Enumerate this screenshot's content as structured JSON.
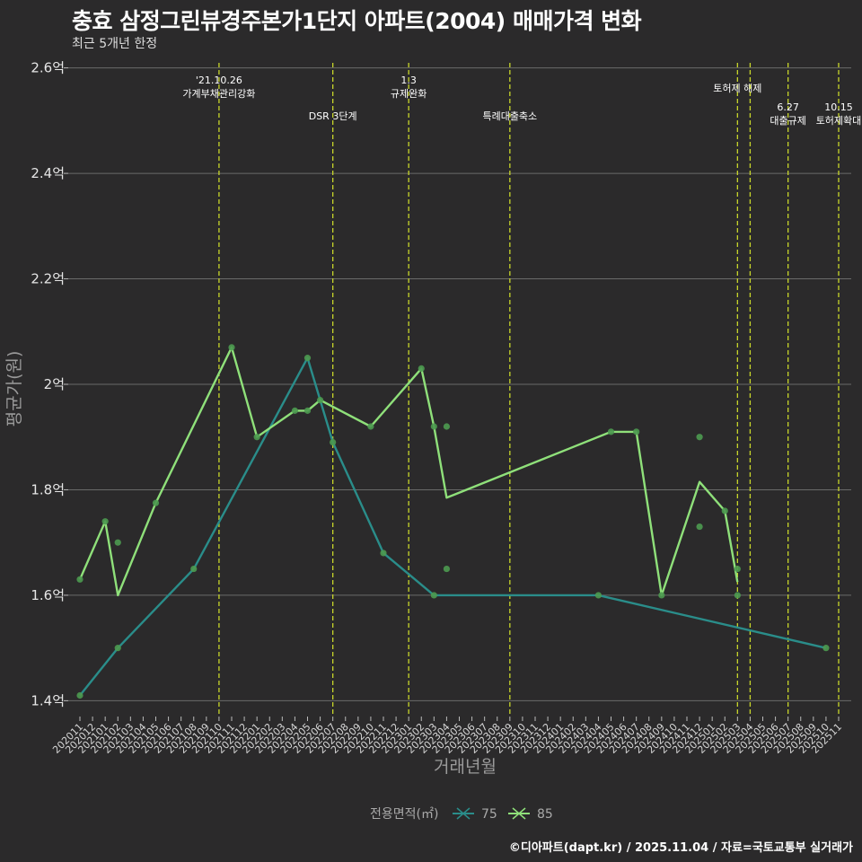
{
  "header": {
    "title": "충효 삼정그린뷰경주본가1단지 아파트(2004) 매매가격 변화",
    "subtitle": "최근 5개년 한정"
  },
  "footer": {
    "caption": "©디아파트(dapt.kr) / 2025.11.04 / 자료=국토교통부 실거래가"
  },
  "colors": {
    "background": "#2b2a2b",
    "grid": "#6a6a6a",
    "event_line": "#c8d62a",
    "series_75": "#2a8d8a",
    "series_85": "#8fe07a",
    "point": "#4c9a50"
  },
  "chart_data": {
    "type": "line",
    "title": "충효 삼정그린뷰경주본가1단지 아파트(2004) 매매가격 변화",
    "subtitle": "최근 5개년 한정",
    "xlabel": "거래년월",
    "ylabel": "평균가(원)",
    "ylim": [
      1.37,
      2.63
    ],
    "y_ticks": [
      {
        "value": 1.4,
        "label": "1.4억"
      },
      {
        "value": 1.6,
        "label": "1.6억"
      },
      {
        "value": 1.8,
        "label": "1.8억"
      },
      {
        "value": 2.0,
        "label": "2억"
      },
      {
        "value": 2.2,
        "label": "2.2억"
      },
      {
        "value": 2.4,
        "label": "2.4억"
      },
      {
        "value": 2.6,
        "label": "2.6억"
      }
    ],
    "x_categories": [
      "202011",
      "202012",
      "202101",
      "202102",
      "202103",
      "202104",
      "202105",
      "202106",
      "202107",
      "202108",
      "202109",
      "202110",
      "202111",
      "202112",
      "202201",
      "202202",
      "202203",
      "202204",
      "202205",
      "202206",
      "202207",
      "202208",
      "202209",
      "202210",
      "202211",
      "202212",
      "202301",
      "202302",
      "202303",
      "202304",
      "202305",
      "202306",
      "202307",
      "202308",
      "202309",
      "202310",
      "202311",
      "202312",
      "202401",
      "202402",
      "202403",
      "202404",
      "202405",
      "202406",
      "202407",
      "202408",
      "202409",
      "202410",
      "202411",
      "202412",
      "202501",
      "202502",
      "202503",
      "202504",
      "202505",
      "202506",
      "202507",
      "202508",
      "202509",
      "202510",
      "202511"
    ],
    "legend": {
      "title": "전용면적(㎡)",
      "entries": [
        "75",
        "85"
      ]
    },
    "series": [
      {
        "name": "75",
        "points": [
          {
            "x": 0,
            "y": 1.41
          },
          {
            "x": 3,
            "y": 1.5
          },
          {
            "x": 9,
            "y": 1.65
          },
          {
            "x": 18,
            "y": 2.05
          },
          {
            "x": 20,
            "y": 1.89
          },
          {
            "x": 24,
            "y": 1.68
          },
          {
            "x": 28,
            "y": 1.6
          },
          {
            "x": 41,
            "y": 1.6
          },
          {
            "x": 59,
            "y": 1.5
          }
        ]
      },
      {
        "name": "85",
        "points": [
          {
            "x": 0,
            "y": 1.63
          },
          {
            "x": 2,
            "y": 1.74
          },
          {
            "x": 3,
            "y": 1.6
          },
          {
            "x": 6,
            "y": 1.775
          },
          {
            "x": 12,
            "y": 2.07
          },
          {
            "x": 14,
            "y": 1.9
          },
          {
            "x": 17,
            "y": 1.95
          },
          {
            "x": 18,
            "y": 1.95
          },
          {
            "x": 19,
            "y": 1.97
          },
          {
            "x": 23,
            "y": 1.92
          },
          {
            "x": 27,
            "y": 2.03
          },
          {
            "x": 28,
            "y": 1.92
          },
          {
            "x": 29,
            "y": 1.785
          },
          {
            "x": 42,
            "y": 1.91
          },
          {
            "x": 44,
            "y": 1.91
          },
          {
            "x": 46,
            "y": 1.6
          },
          {
            "x": 49,
            "y": 1.815
          },
          {
            "x": 51,
            "y": 1.76
          },
          {
            "x": 52,
            "y": 1.625
          }
        ]
      }
    ],
    "scatter_points": [
      {
        "x": 0,
        "y": 1.41
      },
      {
        "x": 0,
        "y": 1.63
      },
      {
        "x": 2,
        "y": 1.74
      },
      {
        "x": 3,
        "y": 1.7
      },
      {
        "x": 3,
        "y": 1.5
      },
      {
        "x": 6,
        "y": 1.775
      },
      {
        "x": 9,
        "y": 1.65
      },
      {
        "x": 12,
        "y": 2.07
      },
      {
        "x": 14,
        "y": 1.9
      },
      {
        "x": 17,
        "y": 1.95
      },
      {
        "x": 18,
        "y": 1.95
      },
      {
        "x": 18,
        "y": 2.05
      },
      {
        "x": 19,
        "y": 1.97
      },
      {
        "x": 20,
        "y": 1.89
      },
      {
        "x": 23,
        "y": 1.92
      },
      {
        "x": 24,
        "y": 1.68
      },
      {
        "x": 27,
        "y": 2.03
      },
      {
        "x": 28,
        "y": 1.92
      },
      {
        "x": 28,
        "y": 1.6
      },
      {
        "x": 29,
        "y": 1.92
      },
      {
        "x": 29,
        "y": 1.65
      },
      {
        "x": 42,
        "y": 1.91
      },
      {
        "x": 44,
        "y": 1.91
      },
      {
        "x": 41,
        "y": 1.6
      },
      {
        "x": 46,
        "y": 1.6
      },
      {
        "x": 49,
        "y": 1.9
      },
      {
        "x": 49,
        "y": 1.73
      },
      {
        "x": 51,
        "y": 1.76
      },
      {
        "x": 52,
        "y": 1.65
      },
      {
        "x": 52,
        "y": 1.6
      },
      {
        "x": 59,
        "y": 1.5
      }
    ],
    "events": [
      {
        "x": 11,
        "label": [
          "'21.10.26",
          "가계부채관리강화"
        ],
        "level": 1
      },
      {
        "x": 20,
        "label": [
          "DSR 3단계"
        ],
        "level": 2
      },
      {
        "x": 26,
        "label": [
          "1.3",
          "규제완화"
        ],
        "level": 1
      },
      {
        "x": 34,
        "label": [
          "특례대출축소"
        ],
        "level": 2
      },
      {
        "x": 52,
        "label": [
          "토허제 해제"
        ],
        "level": 3
      },
      {
        "x": 53,
        "label": [],
        "level": 3
      },
      {
        "x": 56,
        "label": [
          "6.27",
          "대출규제"
        ],
        "level": 4
      },
      {
        "x": 60,
        "label": [
          "10.15",
          "토허제확대"
        ],
        "level": 4
      }
    ]
  }
}
